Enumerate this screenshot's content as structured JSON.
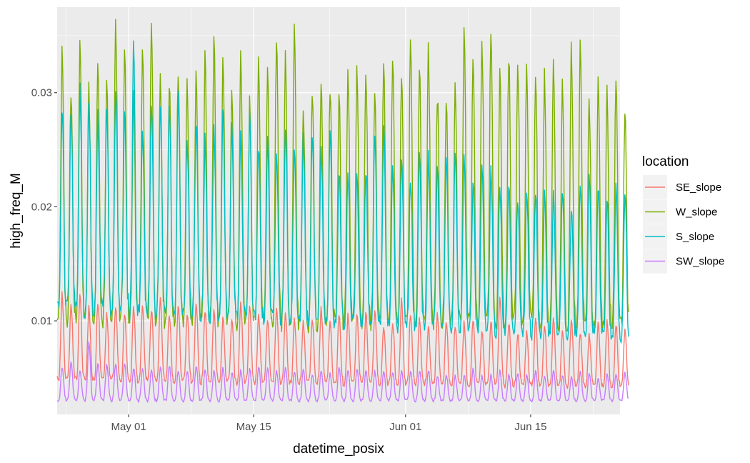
{
  "chart_data": {
    "type": "line",
    "title": "",
    "xlabel": "datetime_posix",
    "ylabel": "high_freq_M",
    "x_range": [
      "2024-04-23",
      "2024-06-25"
    ],
    "ylim": [
      0.0018,
      0.0375
    ],
    "x_ticks": [
      {
        "date": "2024-05-01",
        "label": "May 01"
      },
      {
        "date": "2024-05-15",
        "label": "May 15"
      },
      {
        "date": "2024-06-01",
        "label": "Jun 01"
      },
      {
        "date": "2024-06-15",
        "label": "Jun 15"
      }
    ],
    "x_data_start": "2024-04-23",
    "x_data_end": "2024-06-25",
    "y_ticks": [
      {
        "value": 0.01,
        "label": "0.01"
      },
      {
        "value": 0.02,
        "label": "0.02"
      },
      {
        "value": 0.03,
        "label": "0.03"
      }
    ],
    "grid": true,
    "background": "#EBEBEB",
    "legend": {
      "title": "location",
      "position": "right"
    },
    "series": [
      {
        "name": "SE_slope",
        "color": "#F8766D",
        "pattern": "daily cycle",
        "start_low": 0.0048,
        "start_high": 0.0125,
        "end_low": 0.0042,
        "end_high": 0.01,
        "notable_peaks": [
          {
            "date": "2024-05-31",
            "value": 0.0118
          },
          {
            "date": "2024-06-11",
            "value": 0.0122
          }
        ]
      },
      {
        "name": "W_slope",
        "color": "#7CAE00",
        "pattern": "daily cycle",
        "start_low": 0.01,
        "start_high": 0.0355,
        "end_low": 0.0095,
        "end_high": 0.0345,
        "notable_peaks": [
          {
            "date": "2024-04-29",
            "value": 0.0362
          },
          {
            "date": "2024-05-03",
            "value": 0.0362
          },
          {
            "date": "2024-06-10",
            "value": 0.036
          }
        ]
      },
      {
        "name": "S_slope",
        "color": "#00BFC4",
        "pattern": "daily cycle",
        "start_low": 0.011,
        "start_high": 0.033,
        "end_low": 0.0085,
        "end_high": 0.022,
        "notable_peaks": [
          {
            "date": "2024-05-01",
            "value": 0.0343
          }
        ]
      },
      {
        "name": "SW_slope",
        "color": "#C77CFF",
        "pattern": "daily cycle",
        "start_low": 0.003,
        "start_high": 0.0065,
        "end_low": 0.003,
        "end_high": 0.0055,
        "notable_peaks": [
          {
            "date": "2024-04-26",
            "value": 0.0082
          }
        ]
      }
    ]
  }
}
